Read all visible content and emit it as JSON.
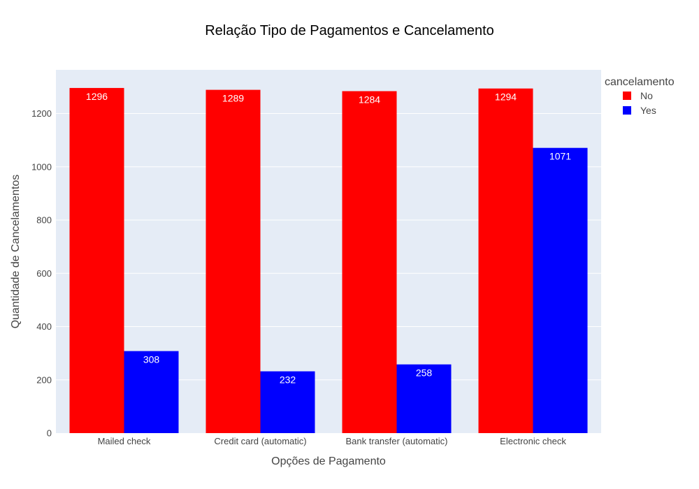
{
  "chart_data": {
    "type": "bar",
    "title": "Relação Tipo de Pagamentos e Cancelamento",
    "xlabel": "Opções de Pagamento",
    "ylabel": "Quantidade de Cancelamentos",
    "categories": [
      "Mailed check",
      "Credit card (automatic)",
      "Bank transfer (automatic)",
      "Electronic check"
    ],
    "series": [
      {
        "name": "No",
        "color": "#ff0000",
        "values": [
          1296,
          1289,
          1284,
          1294
        ]
      },
      {
        "name": "Yes",
        "color": "#0000ff",
        "values": [
          308,
          232,
          258,
          1071
        ]
      }
    ],
    "ylim": [
      0,
      1364
    ],
    "yticks": [
      0,
      200,
      400,
      600,
      800,
      1000,
      1200
    ],
    "grid": true,
    "legend": {
      "title": "cancelamento",
      "placement": "top-right"
    },
    "plot_background": "#e5ecf6"
  }
}
